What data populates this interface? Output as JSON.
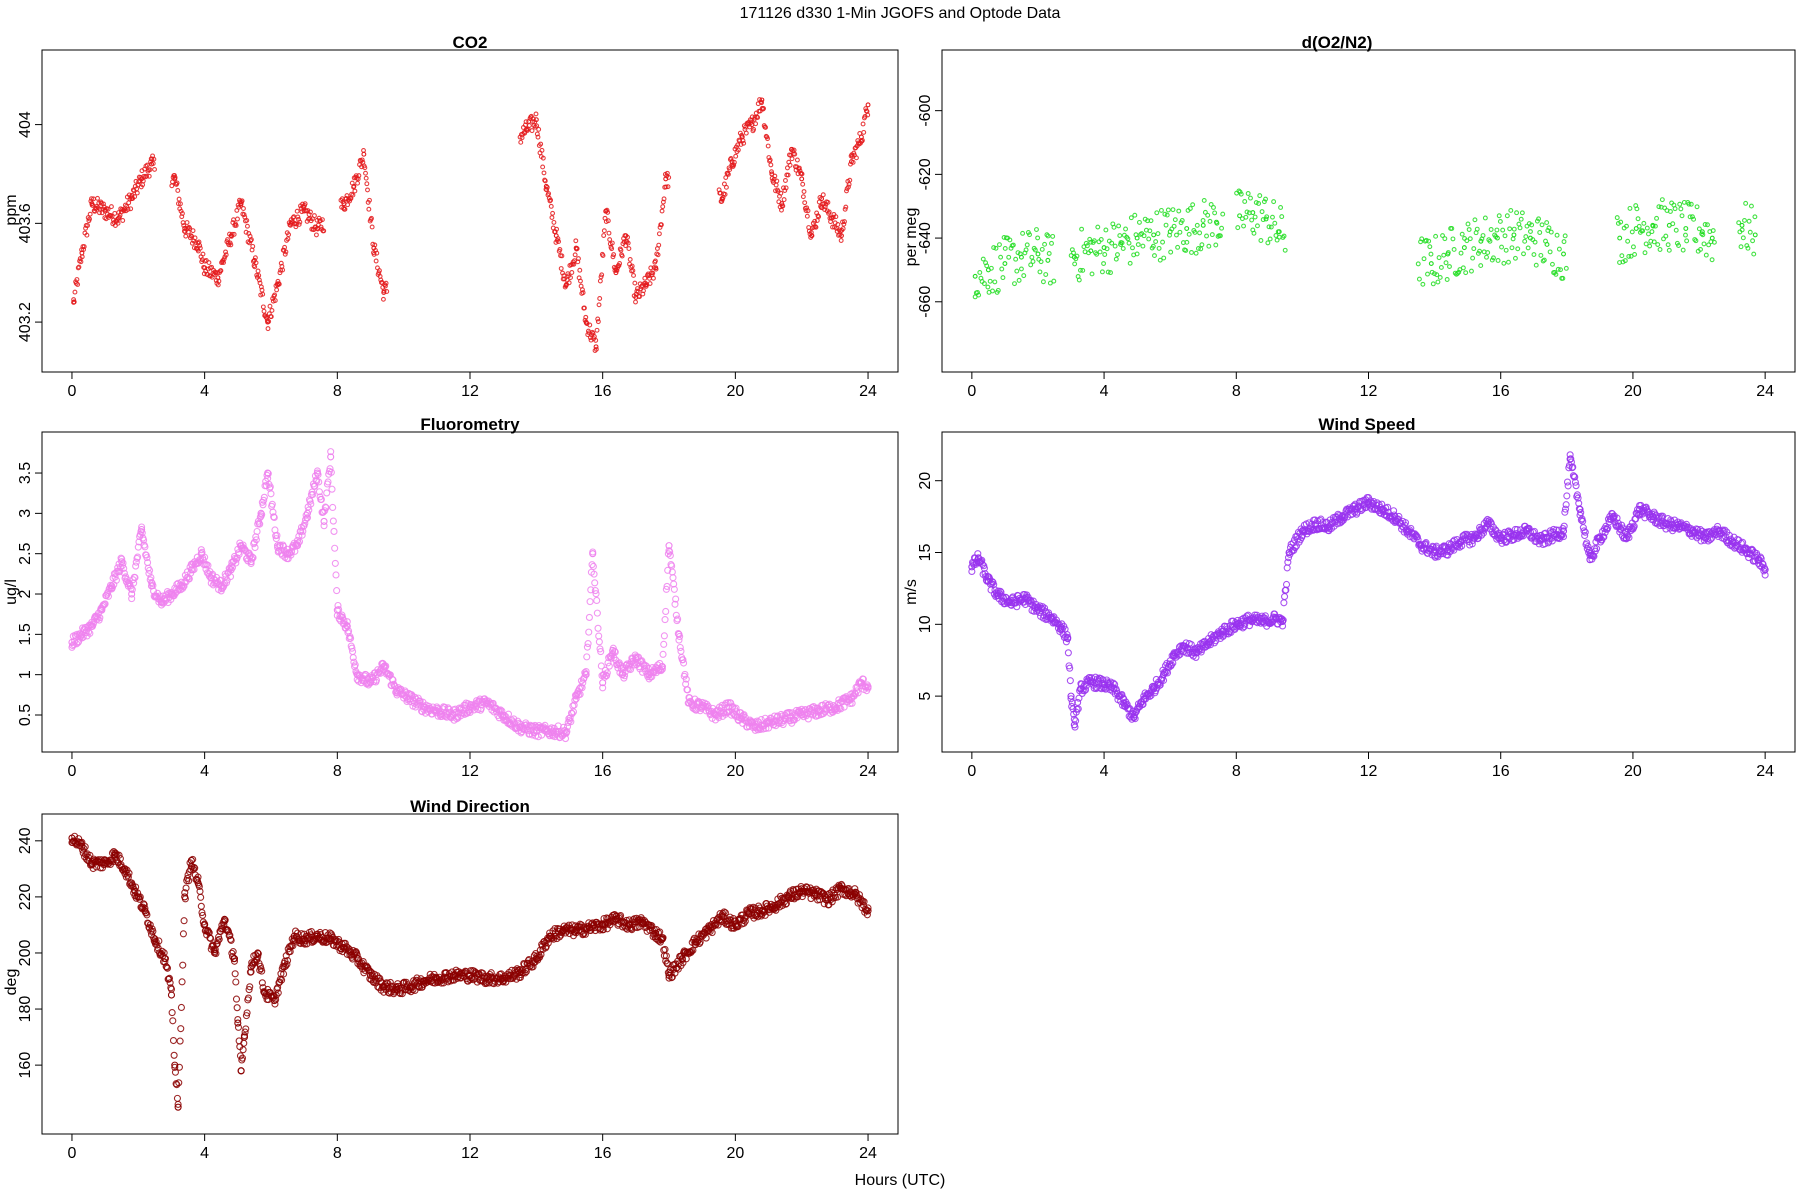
{
  "figure": {
    "title": "171126   d330   1-Min  JGOFS and Optode Data",
    "xlabel": "Hours (UTC)"
  },
  "chart_data": [
    {
      "type": "scatter",
      "title": "CO2",
      "ylabel": "ppm",
      "color": "#e41a1c",
      "xlim": [
        0,
        24
      ],
      "ylim": [
        403.05,
        404.25
      ],
      "xticks": [
        0,
        4,
        8,
        12,
        16,
        20,
        24
      ],
      "yticks": [
        403.2,
        403.6,
        404.0
      ],
      "marker_size": "small",
      "x": [
        0.05,
        0.3,
        0.6,
        1.0,
        1.4,
        1.8,
        2.1,
        2.4,
        3.1,
        3.4,
        3.8,
        4.0,
        4.4,
        4.8,
        5.1,
        5.5,
        5.9,
        6.2,
        6.6,
        7.0,
        7.4,
        8.2,
        8.5,
        8.8,
        9.1,
        9.4,
        13.7,
        14.0,
        14.3,
        14.6,
        14.9,
        15.2,
        15.5,
        15.8,
        16.1,
        16.4,
        16.7,
        17.0,
        17.3,
        17.6,
        17.9,
        19.6,
        19.9,
        20.2,
        20.5,
        20.8,
        21.1,
        21.4,
        21.7,
        22.0,
        22.3,
        22.6,
        23.2,
        23.5,
        23.8,
        24.0
      ],
      "y": [
        403.28,
        403.48,
        403.68,
        403.65,
        403.62,
        403.7,
        403.78,
        403.84,
        403.78,
        403.58,
        403.52,
        403.42,
        403.38,
        403.55,
        403.68,
        403.45,
        403.2,
        403.35,
        403.6,
        403.65,
        403.58,
        403.68,
        403.75,
        403.88,
        403.5,
        403.32,
        403.98,
        404.02,
        403.75,
        403.55,
        403.35,
        403.5,
        403.2,
        403.1,
        403.65,
        403.4,
        403.55,
        403.3,
        403.35,
        403.42,
        403.78,
        403.7,
        403.85,
        403.95,
        404.0,
        404.1,
        403.8,
        403.68,
        403.9,
        403.78,
        403.55,
        403.7,
        403.55,
        403.85,
        403.95,
        404.08
      ],
      "gaps_hours": [
        [
          2.5,
          3.0
        ],
        [
          7.6,
          8.1
        ],
        [
          9.5,
          13.5
        ],
        [
          18.0,
          19.5
        ]
      ]
    },
    {
      "type": "scatter",
      "title": "d(O2/N2)",
      "ylabel": "per meg",
      "color": "#22dd22",
      "xlim": [
        0,
        24
      ],
      "ylim": [
        -678,
        -585
      ],
      "xticks": [
        0,
        4,
        8,
        12,
        16,
        20,
        24
      ],
      "yticks": [
        -660,
        -640,
        -620,
        -600
      ],
      "marker_size": "small",
      "x": [
        0.1,
        0.5,
        1.0,
        1.5,
        2.0,
        2.3,
        3.1,
        3.6,
        4.0,
        4.5,
        5.0,
        5.5,
        6.0,
        6.5,
        7.0,
        7.4,
        8.1,
        8.5,
        8.9,
        9.3,
        13.9,
        14.4,
        14.9,
        15.4,
        15.9,
        16.4,
        16.9,
        17.4,
        17.9,
        19.6,
        20.1,
        20.6,
        21.1,
        21.6,
        22.1,
        22.4,
        23.3,
        23.7
      ],
      "y": [
        -652,
        -650,
        -648,
        -646,
        -645,
        -647,
        -646,
        -644,
        -643,
        -642,
        -640,
        -639,
        -638,
        -637,
        -636,
        -635,
        -633,
        -632,
        -634,
        -638,
        -648,
        -645,
        -643,
        -641,
        -640,
        -639,
        -640,
        -642,
        -645,
        -640,
        -637,
        -636,
        -636,
        -637,
        -638,
        -640,
        -636,
        -639
      ],
      "gaps_hours": [
        [
          2.5,
          3.0
        ],
        [
          7.6,
          8.0
        ],
        [
          9.5,
          13.5
        ],
        [
          18.0,
          19.5
        ],
        [
          22.5,
          23.2
        ]
      ]
    },
    {
      "type": "scatter",
      "title": "Fluorometry",
      "ylabel": "ug/l",
      "color": "#ee82ee",
      "xlim": [
        0,
        24
      ],
      "ylim": [
        0.2,
        3.85
      ],
      "xticks": [
        0,
        4,
        8,
        12,
        16,
        20,
        24
      ],
      "yticks": [
        0.5,
        1.0,
        1.5,
        2.0,
        2.5,
        3.0,
        3.5
      ],
      "marker_size": "medium",
      "x": [
        0.0,
        0.3,
        0.6,
        0.9,
        1.2,
        1.5,
        1.8,
        2.1,
        2.4,
        2.7,
        3.0,
        3.3,
        3.6,
        3.9,
        4.2,
        4.5,
        4.8,
        5.1,
        5.4,
        5.7,
        5.9,
        6.2,
        6.5,
        6.8,
        7.1,
        7.4,
        7.6,
        7.8,
        8.0,
        8.3,
        8.6,
        9.0,
        9.4,
        9.8,
        10.2,
        10.6,
        11.0,
        11.5,
        12.0,
        12.5,
        13.0,
        13.5,
        14.0,
        14.5,
        14.9,
        15.2,
        15.5,
        15.7,
        16.0,
        16.3,
        16.6,
        17.0,
        17.4,
        17.8,
        18.0,
        18.3,
        18.6,
        19.0,
        19.4,
        19.8,
        20.2,
        20.6,
        21.0,
        21.5,
        22.0,
        22.5,
        23.0,
        23.5,
        23.8,
        24.0
      ],
      "y": [
        1.4,
        1.5,
        1.6,
        1.8,
        2.1,
        2.4,
        2.0,
        2.8,
        2.1,
        1.9,
        2.0,
        2.1,
        2.3,
        2.5,
        2.2,
        2.1,
        2.3,
        2.6,
        2.4,
        3.0,
        3.5,
        2.6,
        2.5,
        2.6,
        3.0,
        3.5,
        2.9,
        3.7,
        1.8,
        1.6,
        1.0,
        0.9,
        1.1,
        0.8,
        0.7,
        0.6,
        0.55,
        0.5,
        0.6,
        0.65,
        0.5,
        0.35,
        0.3,
        0.3,
        0.28,
        0.7,
        1.0,
        2.5,
        0.9,
        1.3,
        1.0,
        1.2,
        1.0,
        1.1,
        2.6,
        1.5,
        0.65,
        0.6,
        0.5,
        0.6,
        0.45,
        0.35,
        0.4,
        0.45,
        0.5,
        0.55,
        0.6,
        0.7,
        0.9,
        0.85
      ],
      "gaps_hours": []
    },
    {
      "type": "scatter",
      "title": "Wind Speed",
      "ylabel": "m/s",
      "color": "#9933ee",
      "xlim": [
        0,
        24
      ],
      "ylim": [
        2.0,
        22.5
      ],
      "xticks": [
        0,
        4,
        8,
        12,
        16,
        20,
        24
      ],
      "yticks": [
        5,
        10,
        15,
        20
      ],
      "marker_size": "medium",
      "x": [
        0.0,
        0.2,
        0.5,
        0.8,
        1.2,
        1.6,
        2.0,
        2.4,
        2.7,
        2.9,
        3.0,
        3.1,
        3.3,
        3.6,
        4.0,
        4.3,
        4.6,
        4.9,
        5.2,
        5.5,
        5.8,
        6.1,
        6.4,
        6.8,
        7.2,
        7.6,
        8.0,
        8.4,
        8.8,
        9.2,
        9.4,
        9.6,
        10.0,
        10.4,
        10.8,
        11.2,
        11.6,
        12.0,
        12.4,
        12.8,
        13.2,
        13.6,
        14.0,
        14.4,
        14.8,
        15.2,
        15.6,
        16.0,
        16.4,
        16.8,
        17.2,
        17.6,
        17.9,
        18.1,
        18.4,
        18.7,
        19.0,
        19.4,
        19.8,
        20.2,
        20.6,
        21.0,
        21.4,
        21.8,
        22.2,
        22.6,
        23.0,
        23.4,
        23.8,
        24.0
      ],
      "y": [
        14.0,
        14.6,
        13.0,
        12.0,
        11.5,
        11.8,
        11.0,
        10.5,
        9.8,
        9.0,
        5.0,
        3.0,
        5.5,
        6.0,
        5.8,
        5.5,
        4.5,
        3.5,
        4.8,
        5.5,
        6.5,
        7.8,
        8.5,
        8.0,
        8.8,
        9.5,
        10.0,
        10.3,
        10.2,
        10.4,
        10.2,
        15.0,
        16.5,
        17.0,
        16.8,
        17.5,
        18.0,
        18.5,
        18.0,
        17.5,
        16.5,
        15.5,
        15.0,
        15.2,
        15.8,
        16.0,
        17.0,
        16.0,
        16.2,
        16.5,
        15.8,
        16.2,
        16.5,
        21.5,
        18.0,
        14.5,
        16.0,
        17.5,
        16.0,
        18.0,
        17.5,
        17.0,
        16.8,
        16.5,
        16.0,
        16.5,
        15.8,
        15.2,
        14.5,
        13.8
      ],
      "gaps_hours": []
    },
    {
      "type": "scatter",
      "title": "Wind Direction",
      "ylabel": "deg",
      "color": "#8b0000",
      "xlim": [
        0,
        24
      ],
      "ylim": [
        140,
        245
      ],
      "xticks": [
        0,
        4,
        8,
        12,
        16,
        20,
        24
      ],
      "yticks": [
        160,
        180,
        200,
        220,
        240
      ],
      "marker_size": "medium",
      "x": [
        0.0,
        0.3,
        0.6,
        1.0,
        1.3,
        1.6,
        1.9,
        2.2,
        2.5,
        2.8,
        3.0,
        3.1,
        3.2,
        3.4,
        3.6,
        3.8,
        4.0,
        4.3,
        4.6,
        4.9,
        5.0,
        5.1,
        5.2,
        5.4,
        5.6,
        5.8,
        6.1,
        6.4,
        6.7,
        7.0,
        7.4,
        7.8,
        8.2,
        8.6,
        9.0,
        9.4,
        9.8,
        10.2,
        10.6,
        11.0,
        11.5,
        12.0,
        12.5,
        13.0,
        13.5,
        14.0,
        14.4,
        14.8,
        15.2,
        15.6,
        16.0,
        16.4,
        16.8,
        17.2,
        17.6,
        17.8,
        18.0,
        18.4,
        18.8,
        19.2,
        19.6,
        20.0,
        20.4,
        20.8,
        21.2,
        21.6,
        22.0,
        22.4,
        22.8,
        23.2,
        23.6,
        24.0
      ],
      "y": [
        241,
        238,
        232,
        232,
        235,
        230,
        222,
        215,
        205,
        198,
        185,
        160,
        145,
        220,
        233,
        225,
        210,
        200,
        212,
        198,
        175,
        158,
        170,
        195,
        200,
        186,
        183,
        195,
        206,
        205,
        206,
        205,
        202,
        198,
        192,
        188,
        187,
        188,
        190,
        191,
        192,
        192,
        191,
        191,
        193,
        198,
        206,
        208,
        208,
        209,
        210,
        212,
        210,
        211,
        207,
        205,
        192,
        198,
        204,
        208,
        213,
        210,
        214,
        215,
        217,
        220,
        222,
        221,
        219,
        223,
        221,
        215
      ],
      "gaps_hours": []
    }
  ]
}
